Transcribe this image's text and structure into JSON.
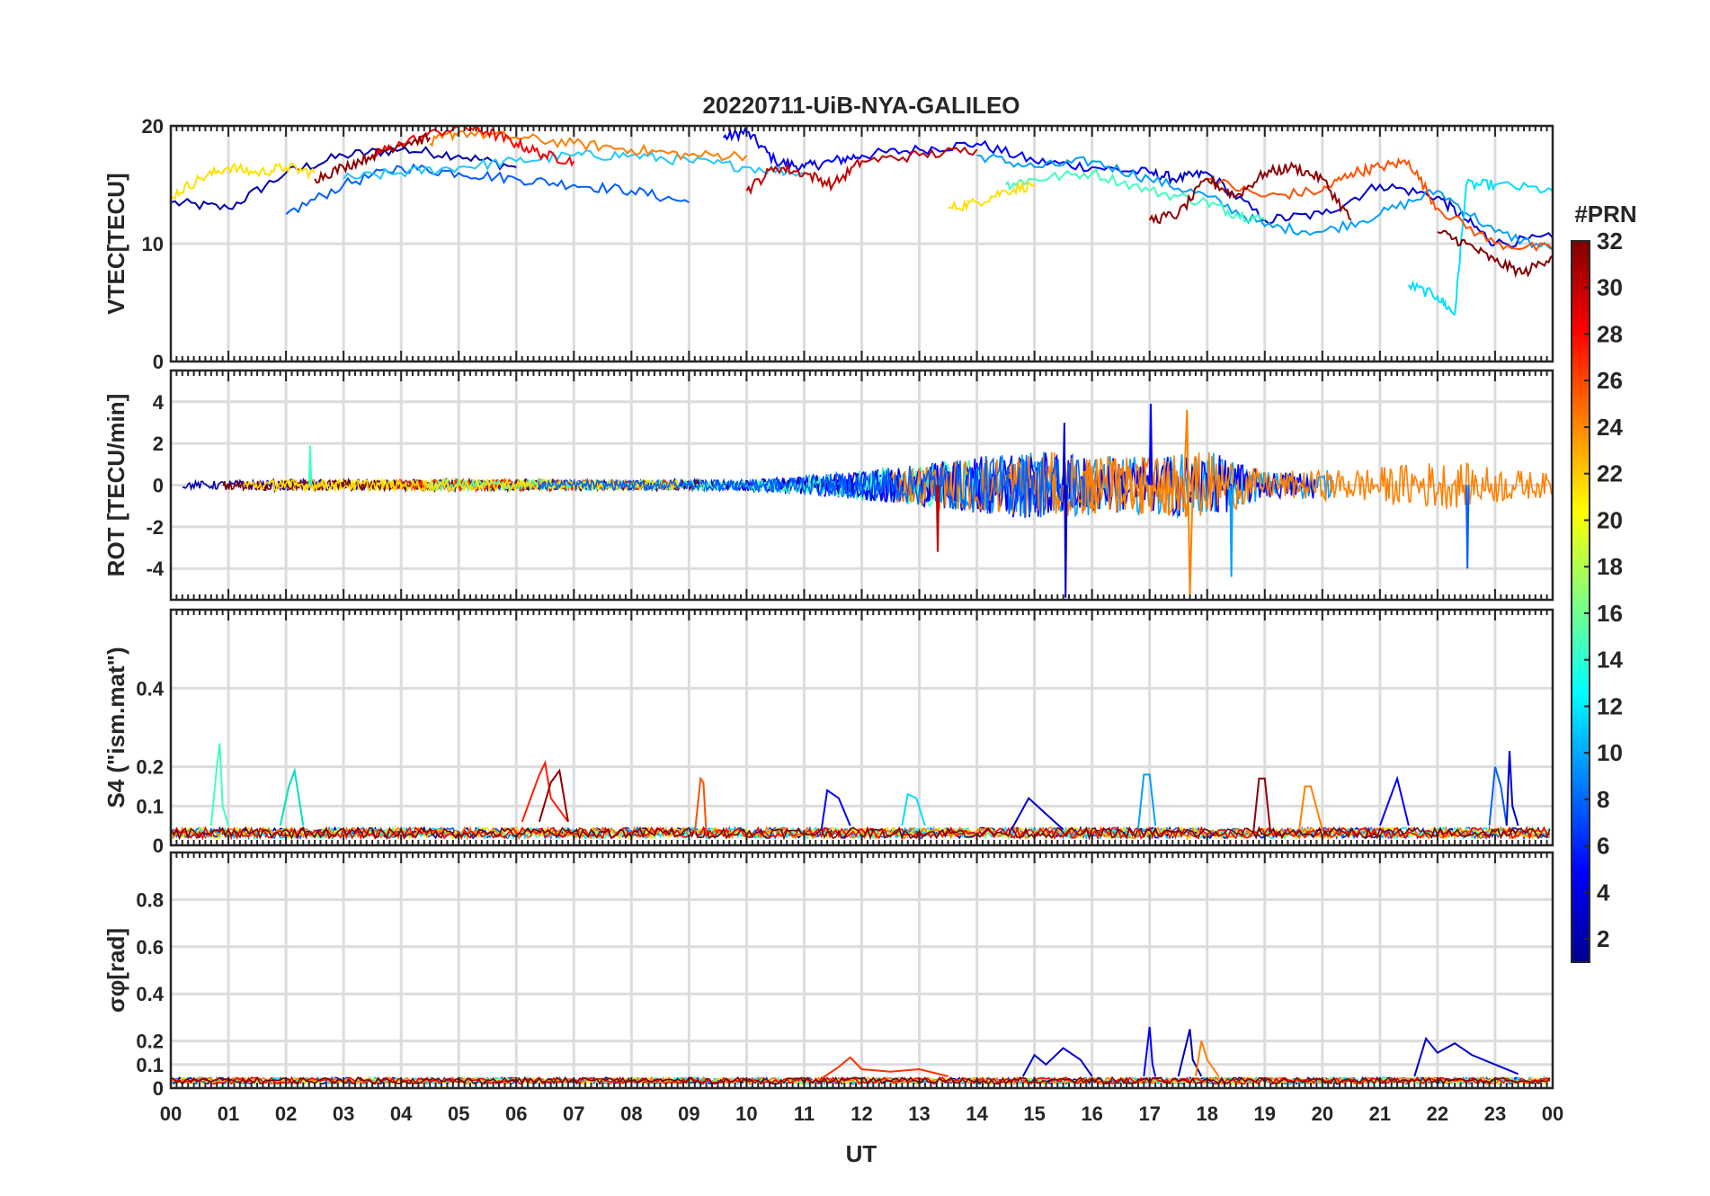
{
  "chart_data": {
    "type": "line",
    "title": "20220711-UiB-NYA-GALILEO",
    "xlabel": "UT",
    "xlim": [
      0,
      24
    ],
    "xticks": [
      "00",
      "01",
      "02",
      "03",
      "04",
      "05",
      "06",
      "07",
      "08",
      "09",
      "10",
      "11",
      "12",
      "13",
      "14",
      "15",
      "16",
      "17",
      "18",
      "19",
      "20",
      "21",
      "22",
      "23",
      "00"
    ],
    "colorbar": {
      "label": "#PRN",
      "colormap": "jet",
      "range": [
        1,
        32
      ],
      "ticks": [
        "2",
        "4",
        "6",
        "8",
        "10",
        "12",
        "14",
        "16",
        "18",
        "20",
        "22",
        "24",
        "26",
        "28",
        "30",
        "32"
      ],
      "colors": [
        "#00008f",
        "#0000ff",
        "#0080ff",
        "#00ffff",
        "#80ff80",
        "#ffff00",
        "#ff8000",
        "#ff0000",
        "#800000"
      ]
    },
    "panels": [
      {
        "id": "vtec",
        "ylabel": "VTEC[TECU]",
        "ylim": [
          0,
          20
        ],
        "yticks": [
          "0",
          "10",
          "20"
        ],
        "series": [
          {
            "prn": 2,
            "color": "#0000b0",
            "x": [
              0.0,
              1.0,
              2.0,
              3.0,
              4.0,
              5.0,
              6.0
            ],
            "y": [
              13.5,
              13.0,
              16.0,
              17.5,
              18.0,
              17.5,
              16.5
            ]
          },
          {
            "prn": 5,
            "color": "#0000ff",
            "x": [
              9.6,
              10.0,
              10.5,
              11.0,
              11.5,
              12.0,
              13.0,
              14.0,
              15.0,
              16.0,
              17.0
            ],
            "y": [
              19.0,
              19.5,
              17.0,
              16.5,
              17.0,
              17.5,
              18.0,
              18.5,
              17.0,
              16.5,
              16.0
            ]
          },
          {
            "prn": 3,
            "color": "#0000d0",
            "x": [
              17.0,
              17.5,
              18.0,
              19.0,
              20.0,
              21.0,
              22.0,
              22.5,
              23.0,
              24.0
            ],
            "y": [
              16.0,
              15.5,
              16.0,
              12.0,
              12.5,
              15.0,
              14.0,
              12.0,
              10.0,
              10.5
            ]
          },
          {
            "prn": 8,
            "color": "#0060ff",
            "x": [
              2.0,
              3.0,
              4.0,
              5.0,
              6.0,
              7.0,
              8.0,
              9.0
            ],
            "y": [
              12.5,
              15.0,
              16.5,
              16.0,
              15.5,
              15.0,
              14.5,
              13.5
            ]
          },
          {
            "prn": 9,
            "color": "#00a0ff",
            "x": [
              14.0,
              15.0,
              16.0,
              17.0,
              18.0,
              19.0,
              20.0,
              21.0,
              22.0,
              23.0,
              24.0
            ],
            "y": [
              17.5,
              16.5,
              17.0,
              15.5,
              14.0,
              11.5,
              11.0,
              12.5,
              14.5,
              11.0,
              9.5
            ]
          },
          {
            "prn": 12,
            "color": "#00e0ff",
            "x": [
              21.5,
              22.0,
              22.3,
              22.5,
              23.0,
              24.0
            ],
            "y": [
              6.5,
              5.5,
              4.0,
              15.0,
              15.0,
              14.5
            ]
          },
          {
            "prn": 11,
            "color": "#20c8ff",
            "x": [
              3.0,
              4.0,
              5.0,
              6.0,
              7.0,
              8.0,
              9.0,
              10.0,
              11.0
            ],
            "y": [
              15.5,
              16.0,
              16.5,
              17.0,
              17.5,
              17.5,
              17.0,
              16.5,
              16.0
            ]
          },
          {
            "prn": 16,
            "color": "#40ffc0",
            "x": [
              14.5,
              15.0,
              16.0,
              17.0,
              18.0,
              18.5,
              19.0
            ],
            "y": [
              15.0,
              15.5,
              16.0,
              14.5,
              13.5,
              12.5,
              12.0
            ]
          },
          {
            "prn": 20,
            "color": "#ffe000",
            "x": [
              0.0,
              0.5,
              1.0,
              1.5,
              2.0,
              2.5
            ],
            "y": [
              14.0,
              15.5,
              16.5,
              16.0,
              16.5,
              16.0
            ]
          },
          {
            "prn": 20,
            "color": "#ffe000",
            "x": [
              13.5,
              14.0,
              14.5,
              15.0
            ],
            "y": [
              13.0,
              13.5,
              14.5,
              15.0
            ]
          },
          {
            "prn": 24,
            "color": "#ff8000",
            "x": [
              4.5,
              5.0,
              6.0,
              7.0,
              8.0,
              9.0,
              10.0
            ],
            "y": [
              18.5,
              19.5,
              19.0,
              18.5,
              18.0,
              17.5,
              17.5
            ]
          },
          {
            "prn": 25,
            "color": "#ff5000",
            "x": [
              18.0,
              19.0,
              20.0,
              20.5,
              21.0,
              21.5,
              22.0,
              23.0,
              24.0
            ],
            "y": [
              15.5,
              14.0,
              14.5,
              16.0,
              16.5,
              17.0,
              13.0,
              10.0,
              9.5
            ]
          },
          {
            "prn": 28,
            "color": "#ff0000",
            "x": [
              3.5,
              4.0,
              5.0,
              5.5,
              6.0,
              6.5,
              7.0
            ],
            "y": [
              17.5,
              18.5,
              20.0,
              19.5,
              18.5,
              17.5,
              17.0
            ]
          },
          {
            "prn": 30,
            "color": "#c00000",
            "x": [
              10.0,
              10.5,
              11.0,
              11.5,
              12.0,
              13.0,
              14.0
            ],
            "y": [
              14.5,
              16.5,
              16.0,
              15.0,
              17.0,
              17.5,
              18.0
            ]
          },
          {
            "prn": 31,
            "color": "#900000",
            "x": [
              2.5,
              3.0,
              3.5,
              4.0,
              4.5
            ],
            "y": [
              15.5,
              16.5,
              17.5,
              18.5,
              19.0
            ]
          },
          {
            "prn": 31,
            "color": "#900000",
            "x": [
              17.0,
              17.5,
              18.0,
              18.5,
              19.0,
              19.5,
              20.0,
              20.5
            ],
            "y": [
              12.0,
              12.5,
              15.5,
              14.0,
              16.0,
              16.5,
              15.5,
              12.0
            ]
          },
          {
            "prn": 32,
            "color": "#800000",
            "x": [
              22.0,
              22.5,
              23.0,
              23.5,
              24.0
            ],
            "y": [
              11.0,
              10.0,
              8.5,
              7.5,
              9.0
            ]
          }
        ]
      },
      {
        "id": "rot",
        "ylabel": "ROT [TECU/min]",
        "ylim": [
          -5.5,
          5.5
        ],
        "yticks": [
          "-4",
          "-2",
          "0",
          "2",
          "4"
        ],
        "activity": [
          {
            "x": [
              0,
              2,
              4,
              6,
              8,
              10,
              11,
              12,
              13,
              14,
              15,
              16,
              17,
              18,
              19,
              20,
              21,
              22,
              23,
              24
            ],
            "amp": [
              0.3,
              0.5,
              0.5,
              0.5,
              0.4,
              0.5,
              0.8,
              1.3,
              1.8,
              2.5,
              3.0,
              2.6,
              2.5,
              3.0,
              1.2,
              1.3,
              1.6,
              2.2,
              1.6,
              1.0
            ]
          }
        ],
        "series": [
          {
            "prn": 3,
            "color": "#0000d0",
            "x": [
              15.5,
              15.52,
              15.54,
              15.56
            ],
            "y": [
              0,
              3.0,
              -5.4,
              0
            ]
          },
          {
            "prn": 5,
            "color": "#0000ff",
            "x": [
              17.0,
              17.02,
              17.04
            ],
            "y": [
              0,
              3.9,
              0
            ]
          },
          {
            "prn": 24,
            "color": "#ff8000",
            "x": [
              17.6,
              17.65,
              17.7,
              17.75
            ],
            "y": [
              0,
              3.6,
              -5.3,
              0
            ]
          },
          {
            "prn": 9,
            "color": "#00a0ff",
            "x": [
              18.4,
              18.42,
              18.44
            ],
            "y": [
              0,
              -4.4,
              0
            ]
          },
          {
            "prn": 28,
            "color": "#c00000",
            "x": [
              13.3,
              13.32,
              13.34
            ],
            "y": [
              0,
              -3.2,
              0
            ]
          },
          {
            "prn": 8,
            "color": "#0060ff",
            "x": [
              22.5,
              22.52,
              22.54
            ],
            "y": [
              0,
              -4.0,
              0
            ]
          },
          {
            "prn": 16,
            "color": "#40ffc0",
            "x": [
              2.4,
              2.42,
              2.44
            ],
            "y": [
              0,
              1.9,
              0
            ]
          }
        ]
      },
      {
        "id": "s4",
        "ylabel": "S4 (\"ism.mat\")",
        "ylim": [
          0,
          0.6
        ],
        "yticks": [
          "0",
          "0.1",
          "0.2",
          "0.4"
        ],
        "baseline": 0.03,
        "series": [
          {
            "prn": 16,
            "color": "#40ffc0",
            "x": [
              0.7,
              0.8,
              0.85,
              0.9,
              1.0
            ],
            "y": [
              0.05,
              0.2,
              0.26,
              0.1,
              0.05
            ]
          },
          {
            "prn": 14,
            "color": "#00e0c0",
            "x": [
              1.9,
              2.05,
              2.15,
              2.3
            ],
            "y": [
              0.05,
              0.15,
              0.19,
              0.05
            ]
          },
          {
            "prn": 28,
            "color": "#ff2000",
            "x": [
              6.1,
              6.4,
              6.5,
              6.6,
              6.9
            ],
            "y": [
              0.06,
              0.18,
              0.21,
              0.12,
              0.06
            ]
          },
          {
            "prn": 31,
            "color": "#900000",
            "x": [
              6.4,
              6.6,
              6.75,
              6.9
            ],
            "y": [
              0.06,
              0.16,
              0.19,
              0.06
            ]
          },
          {
            "prn": 25,
            "color": "#ff5000",
            "x": [
              9.1,
              9.2,
              9.25,
              9.3
            ],
            "y": [
              0.03,
              0.17,
              0.16,
              0.03
            ]
          },
          {
            "prn": 5,
            "color": "#0000ff",
            "x": [
              11.3,
              11.4,
              11.6,
              11.8
            ],
            "y": [
              0.04,
              0.14,
              0.12,
              0.05
            ]
          },
          {
            "prn": 12,
            "color": "#00e0ff",
            "x": [
              12.7,
              12.8,
              12.95,
              13.1
            ],
            "y": [
              0.05,
              0.13,
              0.12,
              0.05
            ]
          },
          {
            "prn": 3,
            "color": "#0000d0",
            "x": [
              14.6,
              14.9,
              15.2,
              15.5
            ],
            "y": [
              0.04,
              0.12,
              0.08,
              0.04
            ]
          },
          {
            "prn": 9,
            "color": "#00a0ff",
            "x": [
              16.8,
              16.9,
              17.0,
              17.1
            ],
            "y": [
              0.04,
              0.18,
              0.18,
              0.05
            ]
          },
          {
            "prn": 31,
            "color": "#900000",
            "x": [
              18.8,
              18.9,
              19.0,
              19.1
            ],
            "y": [
              0.03,
              0.17,
              0.17,
              0.03
            ]
          },
          {
            "prn": 24,
            "color": "#ff8000",
            "x": [
              19.6,
              19.7,
              19.8,
              20.0
            ],
            "y": [
              0.04,
              0.15,
              0.15,
              0.04
            ]
          },
          {
            "prn": 5,
            "color": "#0000ff",
            "x": [
              21.0,
              21.2,
              21.3,
              21.5
            ],
            "y": [
              0.05,
              0.13,
              0.17,
              0.05
            ]
          },
          {
            "prn": 8,
            "color": "#0060ff",
            "x": [
              22.9,
              23.0,
              23.1,
              23.2
            ],
            "y": [
              0.05,
              0.2,
              0.15,
              0.05
            ]
          },
          {
            "prn": 3,
            "color": "#0000d0",
            "x": [
              23.2,
              23.25,
              23.3,
              23.4
            ],
            "y": [
              0.05,
              0.24,
              0.1,
              0.05
            ]
          }
        ]
      },
      {
        "id": "sigma",
        "ylabel": "σφ[rad]",
        "ylim": [
          0,
          1.0
        ],
        "yticks": [
          "0",
          "0.1",
          "0.2",
          "0.4",
          "0.6",
          "0.8"
        ],
        "baseline": 0.03,
        "series": [
          {
            "prn": 26,
            "color": "#ff3000",
            "x": [
              11.3,
              11.6,
              11.8,
              12.0,
              12.5,
              13.0,
              13.5
            ],
            "y": [
              0.04,
              0.09,
              0.13,
              0.08,
              0.07,
              0.08,
              0.05
            ]
          },
          {
            "prn": 3,
            "color": "#0000d0",
            "x": [
              14.8,
              15.0,
              15.2,
              15.5,
              15.8,
              16.0
            ],
            "y": [
              0.05,
              0.14,
              0.1,
              0.17,
              0.12,
              0.05
            ]
          },
          {
            "prn": 5,
            "color": "#0000ff",
            "x": [
              16.9,
              17.0,
              17.05,
              17.1
            ],
            "y": [
              0.05,
              0.26,
              0.1,
              0.05
            ]
          },
          {
            "prn": 2,
            "color": "#0000b0",
            "x": [
              17.5,
              17.7,
              17.75,
              17.9
            ],
            "y": [
              0.05,
              0.25,
              0.12,
              0.05
            ]
          },
          {
            "prn": 24,
            "color": "#ff8000",
            "x": [
              17.8,
              17.9,
              18.0,
              18.2
            ],
            "y": [
              0.05,
              0.2,
              0.12,
              0.05
            ]
          },
          {
            "prn": 3,
            "color": "#0000d0",
            "x": [
              21.6,
              21.8,
              22.0,
              22.3,
              22.6,
              23.0,
              23.4
            ],
            "y": [
              0.05,
              0.21,
              0.15,
              0.19,
              0.14,
              0.1,
              0.06
            ]
          }
        ]
      }
    ]
  }
}
